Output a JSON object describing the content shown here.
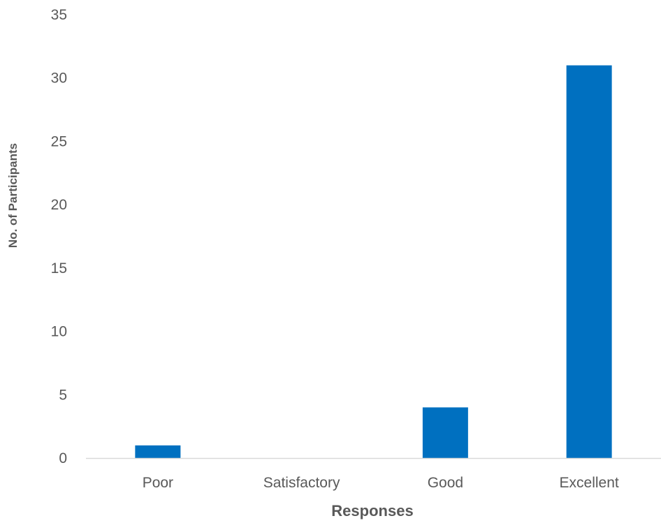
{
  "chart_data": {
    "type": "bar",
    "title": "",
    "xlabel": "Responses",
    "ylabel": "No. of Participants",
    "categories": [
      "Poor",
      "Satisfactory",
      "Good",
      "Excellent"
    ],
    "values": [
      1,
      0,
      4,
      31
    ],
    "ylim": [
      0,
      35
    ],
    "yticks": [
      0,
      5,
      10,
      15,
      20,
      25,
      30,
      35
    ],
    "grid": false,
    "legend": "none",
    "colors": {
      "bar": "#0070C0",
      "axis_line": "#D9D9D9",
      "text": "#595959"
    }
  }
}
